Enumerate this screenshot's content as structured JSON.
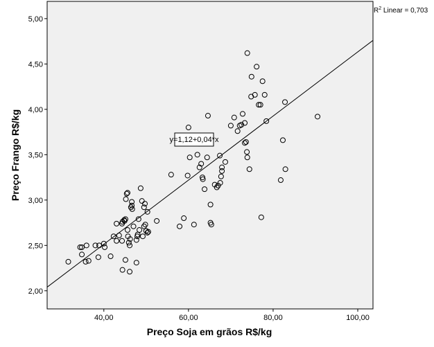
{
  "chart_data": {
    "type": "scatter",
    "xlabel": "Preço Soja em grãos R$/kg",
    "ylabel": "Preço Frango R$/kg",
    "annotation": "y=1,12+0,04*x",
    "r2_label": {
      "base": "R",
      "sup": "2",
      "rest": " Linear = 0,703"
    },
    "xlim": [
      26.6,
      103.6
    ],
    "ylim": [
      1.8,
      5.19
    ],
    "xticks": [
      {
        "value": 40,
        "label": "40,00"
      },
      {
        "value": 60,
        "label": "60,00"
      },
      {
        "value": 80,
        "label": "80,00"
      },
      {
        "value": 100,
        "label": "100,00"
      }
    ],
    "yticks": [
      {
        "value": 2,
        "label": "2,00"
      },
      {
        "value": 2.5,
        "label": "2,50"
      },
      {
        "value": 3,
        "label": "3,00"
      },
      {
        "value": 3.5,
        "label": "3,50"
      },
      {
        "value": 4,
        "label": "4,00"
      },
      {
        "value": 4.5,
        "label": "4,50"
      },
      {
        "value": 5,
        "label": "5,00"
      }
    ],
    "fit_line": {
      "x": [
        26.6,
        103.6
      ],
      "y": [
        2.04,
        4.76
      ]
    },
    "color": "#000000",
    "background": "#f0f0f0",
    "x": [
      31.6,
      34.4,
      34.8,
      34.8,
      35.9,
      35.7,
      36.4,
      38.0,
      38.7,
      40.0,
      40.2,
      38.9,
      41.6,
      42.3,
      43.0,
      43.0,
      43.6,
      44.3,
      44.3,
      44.4,
      44.8,
      44.9,
      45.1,
      44.4,
      45.1,
      45.6,
      45.4,
      45.2,
      45.6,
      45.7,
      45.9,
      46.1,
      46.1,
      46.2,
      46.4,
      46.6,
      46.6,
      46.7,
      47.0,
      47.7,
      47.7,
      47.9,
      48.0,
      48.2,
      48.4,
      48.7,
      49.0,
      49.2,
      49.5,
      49.5,
      49.7,
      49.8,
      50.0,
      50.3,
      50.3,
      50.5,
      52.5,
      55.9,
      57.9,
      58.9,
      59.8,
      60.0,
      60.3,
      61.3,
      62.1,
      62.5,
      62.6,
      63.0,
      63.3,
      63.4,
      63.8,
      64.4,
      64.6,
      65.2,
      65.2,
      65.4,
      66.2,
      66.7,
      67.0,
      67.4,
      67.5,
      67.7,
      67.9,
      67.9,
      68.7,
      70.0,
      70.8,
      71.6,
      72.1,
      72.5,
      72.8,
      73.3,
      73.3,
      73.6,
      73.8,
      73.9,
      73.9,
      74.4,
      74.8,
      74.9,
      75.7,
      76.1,
      76.6,
      77.0,
      77.2,
      77.5,
      78.0,
      78.4,
      81.8,
      82.3,
      82.8,
      82.9,
      90.5
    ],
    "values": [
      2.32,
      2.48,
      2.48,
      2.4,
      2.5,
      2.32,
      2.33,
      2.5,
      2.37,
      2.52,
      2.48,
      2.5,
      2.38,
      2.6,
      2.74,
      2.55,
      2.61,
      2.55,
      2.74,
      2.76,
      2.78,
      2.77,
      2.79,
      2.23,
      2.34,
      2.67,
      3.07,
      3.01,
      3.08,
      2.6,
      2.53,
      2.21,
      2.5,
      2.57,
      2.92,
      2.98,
      2.94,
      2.9,
      2.71,
      2.56,
      2.31,
      2.6,
      2.62,
      2.79,
      2.67,
      3.13,
      2.99,
      2.6,
      2.92,
      2.71,
      2.96,
      2.73,
      2.66,
      2.87,
      2.64,
      2.65,
      2.77,
      3.28,
      2.71,
      2.8,
      3.27,
      3.8,
      3.47,
      2.73,
      3.5,
      3.62,
      3.36,
      3.4,
      3.25,
      3.23,
      3.12,
      3.47,
      3.93,
      2.95,
      2.75,
      2.73,
      3.17,
      3.14,
      3.16,
      3.49,
      3.19,
      3.26,
      3.36,
      3.32,
      3.42,
      3.82,
      3.91,
      3.76,
      3.82,
      3.83,
      3.95,
      3.85,
      3.63,
      3.64,
      3.53,
      3.47,
      4.62,
      3.34,
      4.14,
      4.36,
      4.16,
      4.47,
      4.05,
      4.05,
      2.81,
      4.31,
      4.16,
      3.87,
      3.22,
      3.66,
      4.08,
      3.34,
      3.92
    ]
  }
}
